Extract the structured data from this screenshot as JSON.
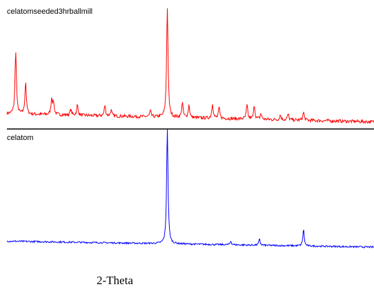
{
  "chart_data": {
    "type": "line",
    "xlabel": "2-Theta",
    "ylabel": "",
    "x_units": "fraction of scan range (no tick values printed)",
    "y_units": "relative intensity (0-1, normalized per trace)",
    "grid": false,
    "legend": "none",
    "series": [
      {
        "name": "celatomseeded3hrballmill",
        "color": "#ff0000",
        "baseline_start": 0.09,
        "baseline_end": 0.02,
        "noise": 0.014,
        "peaks": [
          {
            "x": 0.024,
            "h": 0.55
          },
          {
            "x": 0.051,
            "h": 0.28
          },
          {
            "x": 0.122,
            "h": 0.14
          },
          {
            "x": 0.127,
            "h": 0.1
          },
          {
            "x": 0.174,
            "h": 0.05
          },
          {
            "x": 0.192,
            "h": 0.09
          },
          {
            "x": 0.267,
            "h": 0.09
          },
          {
            "x": 0.284,
            "h": 0.05
          },
          {
            "x": 0.391,
            "h": 0.05
          },
          {
            "x": 0.437,
            "h": 1.0
          },
          {
            "x": 0.478,
            "h": 0.13
          },
          {
            "x": 0.496,
            "h": 0.11
          },
          {
            "x": 0.56,
            "h": 0.13
          },
          {
            "x": 0.578,
            "h": 0.09
          },
          {
            "x": 0.654,
            "h": 0.12
          },
          {
            "x": 0.674,
            "h": 0.12
          },
          {
            "x": 0.692,
            "h": 0.05
          },
          {
            "x": 0.745,
            "h": 0.04
          },
          {
            "x": 0.766,
            "h": 0.05
          },
          {
            "x": 0.808,
            "h": 0.07
          }
        ]
      },
      {
        "name": "celatom",
        "color": "#0000ff",
        "baseline_start": 0.06,
        "baseline_end": 0.01,
        "noise": 0.007,
        "peaks": [
          {
            "x": 0.437,
            "h": 1.0
          },
          {
            "x": 0.61,
            "h": 0.03
          },
          {
            "x": 0.688,
            "h": 0.05
          },
          {
            "x": 0.808,
            "h": 0.14
          }
        ]
      }
    ]
  }
}
